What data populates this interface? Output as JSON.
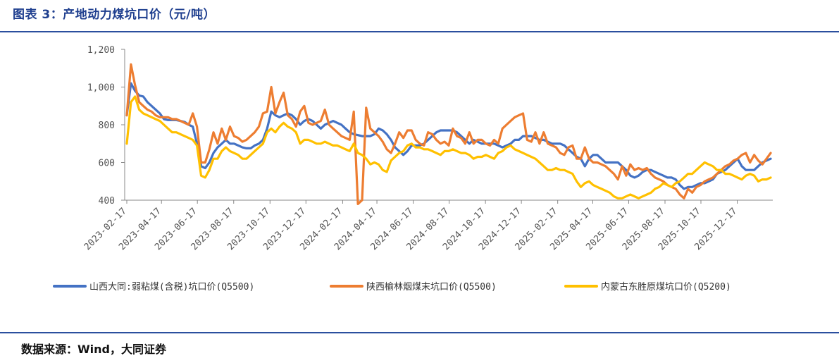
{
  "header": {
    "title": "图表 3：产地动力煤坑口价（元/吨）"
  },
  "footer": {
    "source": "数据来源：Wind，大同证券"
  },
  "chart_data": {
    "type": "line",
    "title": "产地动力煤坑口价（元/吨）",
    "xlabel": "",
    "ylabel": "元/吨",
    "ylim": [
      400,
      1200
    ],
    "yticks": [
      400,
      600,
      800,
      1000,
      1200
    ],
    "ytick_labels": [
      "400",
      "600",
      "800",
      "1,000",
      "1,200"
    ],
    "x_start": "2023-02-17",
    "x_end": "2026-02-13",
    "num_points": 157,
    "xtick_labels": [
      "2023-02-17",
      "2023-04-17",
      "2023-06-17",
      "2023-08-17",
      "2023-10-17",
      "2023-12-17",
      "2024-02-17",
      "2024-04-17",
      "2024-06-17",
      "2024-08-17",
      "2024-10-17",
      "2024-12-17",
      "2025-02-17",
      "2025-04-17",
      "2025-06-17",
      "2025-08-17",
      "2025-10-17",
      "2025-12-17"
    ],
    "xtick_index": [
      0,
      8.4,
      17.1,
      25.9,
      34.7,
      43.4,
      52.3,
      60.6,
      69.4,
      78.1,
      86.9,
      95.6,
      104.4,
      112.9,
      121.6,
      130.4,
      139.1,
      147.9
    ],
    "legend_position": "bottom",
    "series": [
      {
        "name": "山西大同:弱粘煤(含税)坑口价(Q5500)",
        "color": "#4472c4",
        "values": [
          850,
          1020,
          980,
          955,
          950,
          920,
          900,
          880,
          860,
          830,
          825,
          825,
          825,
          820,
          815,
          800,
          790,
          700,
          580,
          570,
          600,
          650,
          680,
          700,
          720,
          700,
          700,
          690,
          680,
          675,
          675,
          690,
          700,
          720,
          780,
          870,
          850,
          840,
          850,
          860,
          850,
          830,
          800,
          820,
          830,
          820,
          800,
          780,
          800,
          810,
          820,
          810,
          800,
          780,
          760,
          750,
          745,
          740,
          740,
          740,
          750,
          780,
          770,
          750,
          720,
          680,
          660,
          640,
          660,
          690,
          690,
          690,
          700,
          720,
          740,
          760,
          770,
          770,
          770,
          770,
          760,
          740,
          720,
          700,
          720,
          710,
          700,
          700,
          700,
          700,
          690,
          680,
          690,
          700,
          720,
          720,
          740,
          740,
          740,
          730,
          720,
          720,
          710,
          700,
          700,
          700,
          690,
          670,
          650,
          630,
          620,
          580,
          620,
          640,
          640,
          620,
          600,
          600,
          600,
          600,
          580,
          560,
          530,
          520,
          530,
          550,
          560,
          560,
          550,
          540,
          530,
          520,
          520,
          510,
          480,
          460,
          470,
          470,
          480,
          490,
          490,
          500,
          510,
          540,
          550,
          560,
          580,
          600,
          620,
          580,
          560,
          560,
          560,
          580,
          600,
          610,
          620
        ]
      },
      {
        "name": "陕西榆林烟煤末坑口价(Q5500)",
        "color": "#ed7d31",
        "values": [
          850,
          1120,
          1010,
          920,
          900,
          880,
          870,
          850,
          840,
          840,
          840,
          830,
          830,
          820,
          810,
          800,
          860,
          790,
          600,
          600,
          670,
          760,
          700,
          780,
          720,
          790,
          740,
          730,
          710,
          720,
          740,
          760,
          790,
          860,
          870,
          1000,
          860,
          920,
          970,
          850,
          830,
          790,
          870,
          900,
          810,
          800,
          810,
          820,
          880,
          800,
          780,
          760,
          740,
          730,
          720,
          870,
          380,
          400,
          890,
          780,
          760,
          740,
          710,
          670,
          650,
          700,
          760,
          730,
          770,
          770,
          720,
          700,
          690,
          760,
          750,
          720,
          700,
          710,
          690,
          780,
          740,
          730,
          700,
          760,
          700,
          720,
          720,
          700,
          690,
          720,
          700,
          780,
          800,
          820,
          840,
          850,
          860,
          720,
          710,
          760,
          700,
          760,
          700,
          690,
          680,
          650,
          640,
          680,
          690,
          620,
          620,
          680,
          620,
          600,
          600,
          590,
          580,
          560,
          540,
          510,
          580,
          530,
          590,
          560,
          570,
          560,
          570,
          540,
          520,
          510,
          500,
          480,
          470,
          460,
          430,
          410,
          460,
          440,
          470,
          480,
          500,
          510,
          520,
          540,
          560,
          580,
          590,
          610,
          620,
          640,
          650,
          600,
          640,
          610,
          590,
          620,
          650
        ]
      },
      {
        "name": "内蒙古东胜原煤坑口价(Q5200)",
        "color": "#ffc000",
        "values": [
          700,
          920,
          950,
          880,
          860,
          850,
          840,
          830,
          820,
          800,
          780,
          760,
          760,
          750,
          740,
          730,
          720,
          690,
          530,
          520,
          560,
          620,
          620,
          660,
          680,
          660,
          650,
          640,
          620,
          620,
          640,
          660,
          680,
          700,
          760,
          780,
          760,
          790,
          810,
          790,
          780,
          760,
          700,
          720,
          720,
          710,
          700,
          700,
          710,
          700,
          690,
          690,
          680,
          670,
          660,
          700,
          650,
          640,
          620,
          590,
          600,
          590,
          560,
          550,
          610,
          630,
          650,
          660,
          690,
          700,
          680,
          680,
          670,
          670,
          660,
          650,
          640,
          660,
          660,
          670,
          660,
          650,
          650,
          640,
          620,
          630,
          630,
          640,
          630,
          620,
          650,
          660,
          680,
          690,
          670,
          660,
          650,
          640,
          630,
          620,
          600,
          580,
          560,
          560,
          570,
          560,
          560,
          550,
          540,
          500,
          470,
          490,
          500,
          480,
          470,
          460,
          450,
          440,
          420,
          410,
          410,
          420,
          430,
          420,
          410,
          420,
          430,
          440,
          460,
          470,
          490,
          480,
          470,
          490,
          500,
          520,
          540,
          540,
          560,
          580,
          600,
          590,
          580,
          560,
          560,
          540,
          540,
          530,
          520,
          510,
          530,
          540,
          530,
          500,
          510,
          510,
          520
        ]
      }
    ]
  }
}
